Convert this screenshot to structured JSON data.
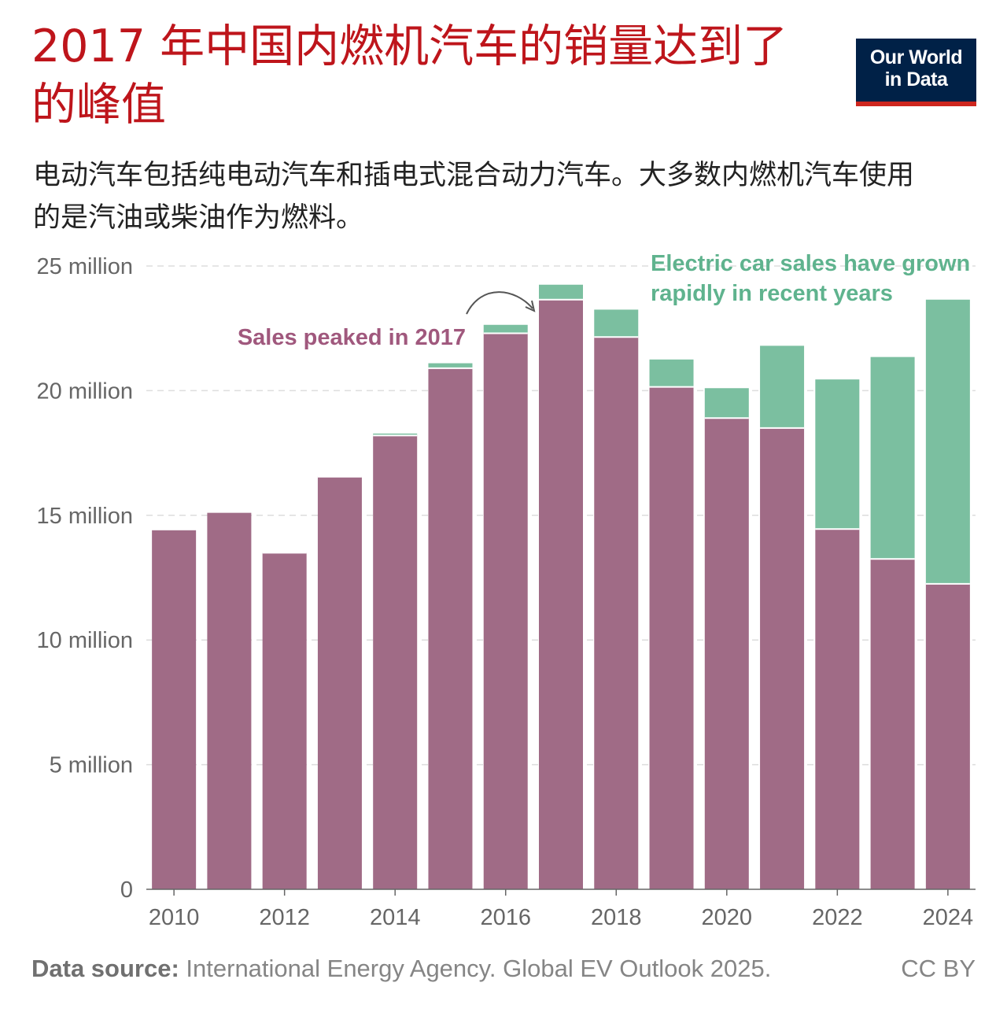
{
  "title": "2017 年中国内燃机汽车的销量达到了的峰值",
  "subtitle": "电动汽车包括纯电动汽车和插电式混合动力汽车。大多数内燃机汽车使用的是汽油或柴油作为燃料。",
  "logo": {
    "line1": "Our World",
    "line2": "in Data"
  },
  "footer": {
    "source_label": "Data source:",
    "source_text": " International Energy Agency. Global EV Outlook 2025.",
    "license": "CC BY"
  },
  "colors": {
    "ice": "#a06b86",
    "ev": "#7bbfa0",
    "grid": "#dddddd",
    "axis": "#666666",
    "annotation_ice": "#a0587d",
    "annotation_ev": "#5fb38e"
  },
  "chart_data": {
    "type": "bar",
    "stacked": true,
    "title": "2017 年中国内燃机汽车的销量达到了的峰值",
    "xlabel": "",
    "ylabel": "",
    "ylim": [
      0,
      25000000
    ],
    "yticks": [
      0,
      5000000,
      10000000,
      15000000,
      20000000,
      25000000
    ],
    "ytick_labels": [
      "0",
      "5 million",
      "10 million",
      "15 million",
      "20 million",
      "25 million"
    ],
    "xtick_labels": [
      "2010",
      "2012",
      "2014",
      "2016",
      "2018",
      "2020",
      "2022",
      "2024"
    ],
    "categories": [
      "2010",
      "2011",
      "2012",
      "2013",
      "2014",
      "2015",
      "2016",
      "2017",
      "2018",
      "2019",
      "2020",
      "2021",
      "2022",
      "2023",
      "2024"
    ],
    "series": [
      {
        "name": "Internal combustion engine cars",
        "values": [
          14400000,
          15100000,
          13500000,
          16550000,
          18200000,
          20900000,
          22300000,
          23650000,
          22150000,
          20150000,
          18900000,
          18500000,
          14450000,
          13250000,
          12250000
        ]
      },
      {
        "name": "Electric cars",
        "values": [
          0,
          0,
          10000,
          20000,
          80000,
          200000,
          340000,
          600000,
          1100000,
          1100000,
          1200000,
          3300000,
          6000000,
          8100000,
          11400000
        ]
      }
    ],
    "annotations": [
      {
        "text": "Sales peaked in 2017",
        "series": "Internal combustion engine cars",
        "target": "2017"
      },
      {
        "text_line1": "Electric car sales have grown",
        "text_line2": "rapidly in recent years",
        "series": "Electric cars"
      }
    ]
  }
}
